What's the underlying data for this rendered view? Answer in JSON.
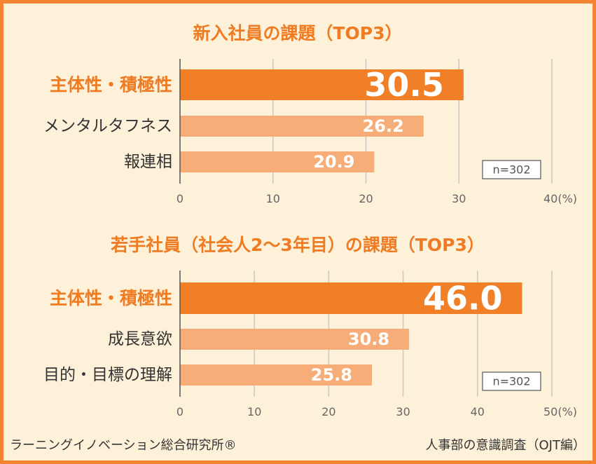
{
  "colors": {
    "background": "#fdf1d9",
    "border": "#f4842f",
    "title": "#ef7b22",
    "highlight_bar": "#f07f27",
    "bar": "#f6ad77",
    "gridline": "#c8c8c8",
    "value_label": "#ffffff"
  },
  "chart_data": [
    {
      "type": "bar",
      "orientation": "horizontal",
      "title": "新入社員の課題（TOP3）",
      "categories": [
        "主体性・積極性",
        "メンタルタフネス",
        "報連相"
      ],
      "values": [
        30.5,
        26.2,
        20.9
      ],
      "value_labels": [
        "30.5",
        "26.2",
        "20.9"
      ],
      "highlight_index": 0,
      "xlim": [
        0,
        40
      ],
      "xticks": [
        0,
        10,
        20,
        30,
        40
      ],
      "xtick_labels": [
        "0",
        "10",
        "20",
        "30",
        "40(%)"
      ],
      "grid": true,
      "note": "n=302"
    },
    {
      "type": "bar",
      "orientation": "horizontal",
      "title": "若手社員（社会人2〜3年目）の課題（TOP3）",
      "categories": [
        "主体性・積極性",
        "成長意欲",
        "目的・目標の理解"
      ],
      "values": [
        46.0,
        30.8,
        25.8
      ],
      "value_labels": [
        "46.0",
        "30.8",
        "25.8"
      ],
      "highlight_index": 0,
      "xlim": [
        0,
        50
      ],
      "xticks": [
        0,
        10,
        20,
        30,
        40,
        50
      ],
      "xtick_labels": [
        "0",
        "10",
        "20",
        "30",
        "40",
        "50(%)"
      ],
      "grid": true,
      "note": "n=302"
    }
  ],
  "footer": {
    "left": "ラーニングイノベーション総合研究所®",
    "right": "人事部の意識調査（OJT編）"
  }
}
